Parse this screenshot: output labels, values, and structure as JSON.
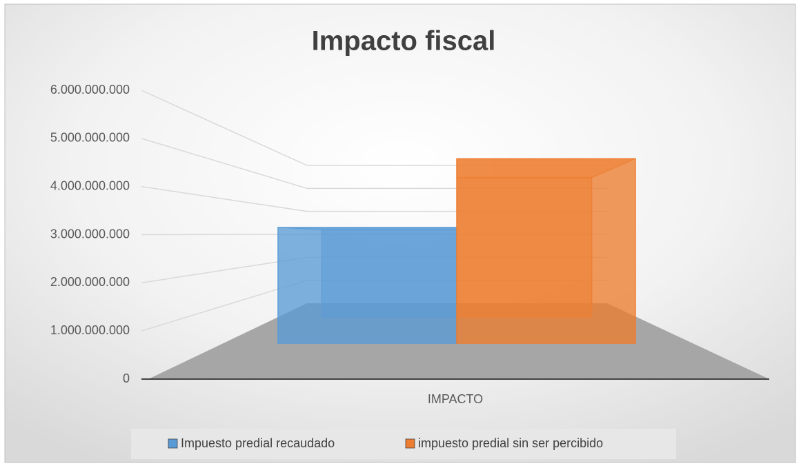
{
  "chart_data": {
    "type": "bar3d",
    "title": "Impacto fiscal",
    "categories": [
      "IMPACTO"
    ],
    "series": [
      {
        "name": "Impuesto predial recaudado",
        "color": "#5b9bd5",
        "values": [
          3200000000
        ]
      },
      {
        "name": "impuesto predial sin ser percibido",
        "color": "#ed7d31",
        "values": [
          5100000000
        ]
      }
    ],
    "ylim": [
      0,
      6000000000
    ],
    "yticks": [
      0,
      {
        "value": 1000000000,
        "label": "1.000.000.000"
      },
      {
        "value": 2000000000,
        "label": "2.000.000.000"
      },
      {
        "value": 3000000000,
        "label": "3.000.000.000"
      },
      {
        "value": 4000000000,
        "label": "4.000.000.000"
      },
      {
        "value": 5000000000,
        "label": "5.000.000.000"
      },
      {
        "value": 6000000000,
        "label": "6.000.000.000"
      }
    ],
    "grid": true,
    "legend": "bottom"
  }
}
